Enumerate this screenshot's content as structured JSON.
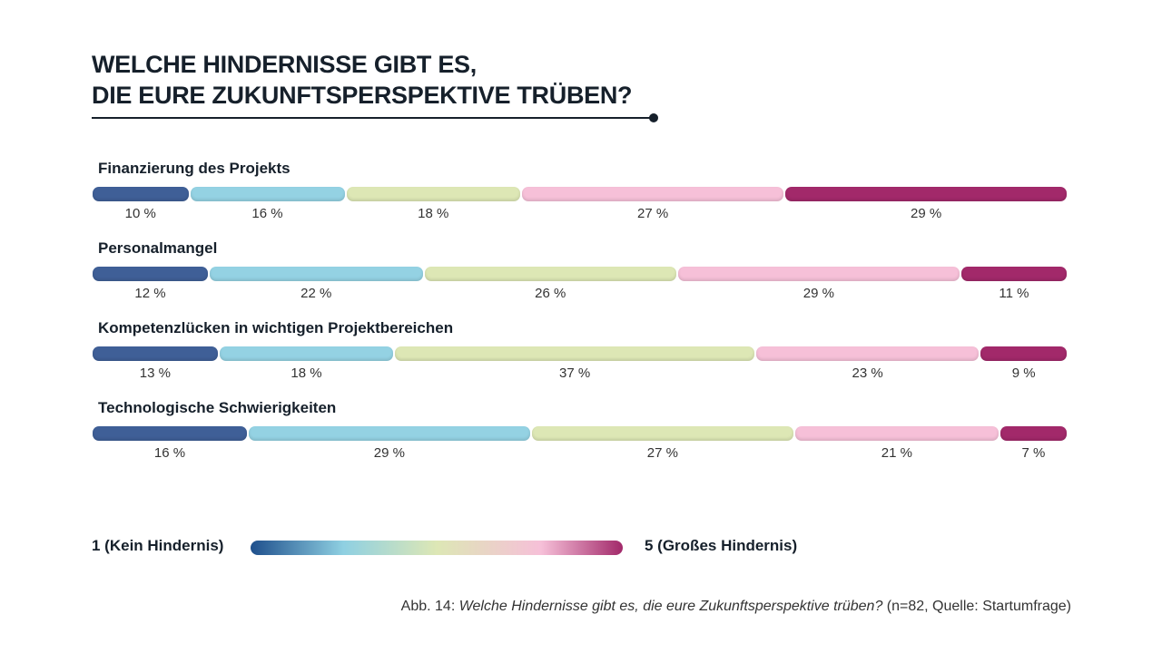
{
  "chart_data": {
    "type": "bar",
    "stacked": true,
    "orientation": "horizontal",
    "title_line1": "WELCHE HINDERNISSE GIBT ES,",
    "title_line2": "DIE EURE ZUKUNFTSPERSPEKTIVE TRÜBEN?",
    "categories": [
      "Finanzierung des Projekts",
      "Personalmangel",
      "Kompetenzlücken in wichtigen Projektbereichen",
      "Technologische Schwierigkeiten"
    ],
    "series": [
      {
        "name": "1",
        "color": "#3f5f97",
        "values": [
          10,
          12,
          13,
          16
        ]
      },
      {
        "name": "2",
        "color": "#94d2e3",
        "values": [
          16,
          22,
          18,
          29
        ]
      },
      {
        "name": "3",
        "color": "#dde7b5",
        "values": [
          18,
          26,
          37,
          27
        ]
      },
      {
        "name": "4",
        "color": "#f6c0d8",
        "values": [
          27,
          29,
          23,
          21
        ]
      },
      {
        "name": "5",
        "color": "#a2296a",
        "values": [
          29,
          11,
          9,
          7
        ]
      }
    ],
    "unit": "%",
    "legend": {
      "low": "1 (Kein Hindernis)",
      "high": "5 (Großes Hindernis)"
    }
  },
  "caption": {
    "prefix": "Abb. 14: ",
    "italic": "Welche Hindernisse gibt es, die eure Zukunftsperspektive trüben?",
    "suffix": " (n=82, Quelle: Startumfrage)"
  }
}
